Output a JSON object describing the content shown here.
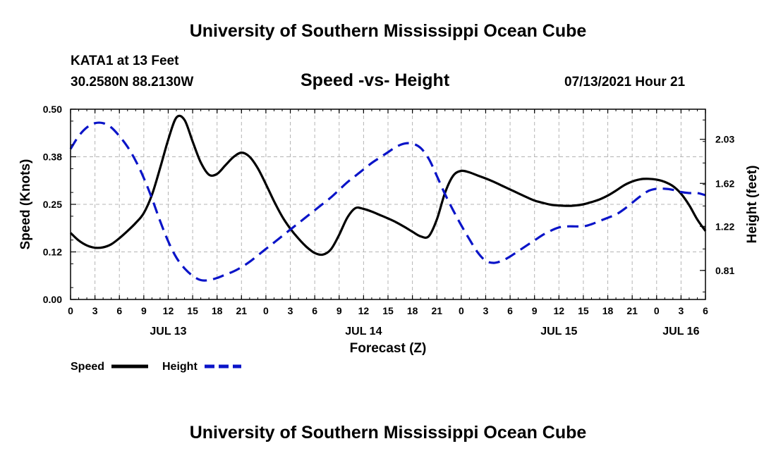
{
  "header": {
    "title_top": "University of Southern Mississippi Ocean Cube",
    "station": "KATA1 at 13 Feet",
    "coords": "30.2580N  88.2130W",
    "chart_title": "Speed -vs- Height",
    "run_time": "07/13/2021 Hour 21",
    "title_bottom": "University of Southern Mississippi Ocean Cube"
  },
  "colors": {
    "speed": "#000000",
    "height": "#0a14c8",
    "grid": "#b4b4b4"
  },
  "chart_data": {
    "type": "line",
    "title": "Speed -vs- Height",
    "xlabel": "Forecast (Z)",
    "ylabel": "Speed (Knots)",
    "y2label": "Height (feet)",
    "x_range_hours": [
      0,
      78
    ],
    "hour_ticks": [
      {
        "h": 0,
        "label": "0"
      },
      {
        "h": 3,
        "label": "3"
      },
      {
        "h": 6,
        "label": "6"
      },
      {
        "h": 9,
        "label": "9"
      },
      {
        "h": 12,
        "label": "12"
      },
      {
        "h": 15,
        "label": "15"
      },
      {
        "h": 18,
        "label": "18"
      },
      {
        "h": 21,
        "label": "21"
      },
      {
        "h": 24,
        "label": "0"
      },
      {
        "h": 27,
        "label": "3"
      },
      {
        "h": 30,
        "label": "6"
      },
      {
        "h": 33,
        "label": "9"
      },
      {
        "h": 36,
        "label": "12"
      },
      {
        "h": 39,
        "label": "15"
      },
      {
        "h": 42,
        "label": "18"
      },
      {
        "h": 45,
        "label": "21"
      },
      {
        "h": 48,
        "label": "0"
      },
      {
        "h": 51,
        "label": "3"
      },
      {
        "h": 54,
        "label": "6"
      },
      {
        "h": 57,
        "label": "9"
      },
      {
        "h": 60,
        "label": "12"
      },
      {
        "h": 63,
        "label": "15"
      },
      {
        "h": 66,
        "label": "18"
      },
      {
        "h": 69,
        "label": "21"
      },
      {
        "h": 72,
        "label": "0"
      },
      {
        "h": 75,
        "label": "3"
      },
      {
        "h": 78,
        "label": "6"
      }
    ],
    "day_labels": [
      {
        "h": 12,
        "label": "JUL 13"
      },
      {
        "h": 36,
        "label": "JUL 14"
      },
      {
        "h": 60,
        "label": "JUL 15"
      },
      {
        "h": 75,
        "label": "JUL 16"
      }
    ],
    "y_left": {
      "min": 0.0,
      "max": 0.5,
      "ticks": [
        "0.00",
        "0.12",
        "0.25",
        "0.38",
        "0.50"
      ]
    },
    "y_right": {
      "min": 0.54,
      "max": 2.31,
      "ticks": [
        "0.81",
        "1.22",
        "1.62",
        "2.03"
      ]
    },
    "series": [
      {
        "name": "Speed",
        "axis": "left",
        "style": "solid",
        "points": [
          [
            0,
            0.175
          ],
          [
            1,
            0.155
          ],
          [
            2,
            0.142
          ],
          [
            3,
            0.136
          ],
          [
            4,
            0.137
          ],
          [
            5,
            0.145
          ],
          [
            6,
            0.161
          ],
          [
            7,
            0.18
          ],
          [
            8,
            0.201
          ],
          [
            9,
            0.227
          ],
          [
            10,
            0.275
          ],
          [
            11,
            0.345
          ],
          [
            12,
            0.42
          ],
          [
            13,
            0.478
          ],
          [
            14,
            0.472
          ],
          [
            15,
            0.415
          ],
          [
            16,
            0.36
          ],
          [
            17,
            0.328
          ],
          [
            18,
            0.33
          ],
          [
            19,
            0.352
          ],
          [
            20,
            0.374
          ],
          [
            21,
            0.386
          ],
          [
            22,
            0.375
          ],
          [
            23,
            0.345
          ],
          [
            24,
            0.303
          ],
          [
            25,
            0.258
          ],
          [
            26,
            0.218
          ],
          [
            27,
            0.186
          ],
          [
            28,
            0.16
          ],
          [
            29,
            0.138
          ],
          [
            30,
            0.122
          ],
          [
            31,
            0.118
          ],
          [
            32,
            0.132
          ],
          [
            33,
            0.17
          ],
          [
            34,
            0.215
          ],
          [
            35,
            0.24
          ],
          [
            36,
            0.238
          ],
          [
            37,
            0.231
          ],
          [
            38,
            0.222
          ],
          [
            39,
            0.213
          ],
          [
            40,
            0.203
          ],
          [
            41,
            0.191
          ],
          [
            42,
            0.178
          ],
          [
            43,
            0.166
          ],
          [
            44,
            0.166
          ],
          [
            45,
            0.21
          ],
          [
            46,
            0.28
          ],
          [
            47,
            0.325
          ],
          [
            48,
            0.338
          ],
          [
            49,
            0.334
          ],
          [
            50,
            0.326
          ],
          [
            51,
            0.318
          ],
          [
            52,
            0.309
          ],
          [
            53,
            0.299
          ],
          [
            54,
            0.289
          ],
          [
            55,
            0.279
          ],
          [
            56,
            0.269
          ],
          [
            57,
            0.26
          ],
          [
            58,
            0.254
          ],
          [
            59,
            0.249
          ],
          [
            60,
            0.247
          ],
          [
            61,
            0.246
          ],
          [
            62,
            0.247
          ],
          [
            63,
            0.25
          ],
          [
            64,
            0.256
          ],
          [
            65,
            0.263
          ],
          [
            66,
            0.273
          ],
          [
            67,
            0.286
          ],
          [
            68,
            0.3
          ],
          [
            69,
            0.31
          ],
          [
            70,
            0.316
          ],
          [
            71,
            0.317
          ],
          [
            72,
            0.315
          ],
          [
            73,
            0.309
          ],
          [
            74,
            0.298
          ],
          [
            75,
            0.278
          ],
          [
            76,
            0.248
          ],
          [
            77,
            0.21
          ],
          [
            78,
            0.18
          ]
        ]
      },
      {
        "name": "Height",
        "axis": "right",
        "style": "dashed",
        "points": [
          [
            0,
            1.94
          ],
          [
            1,
            2.06
          ],
          [
            2,
            2.14
          ],
          [
            3,
            2.18
          ],
          [
            4,
            2.18
          ],
          [
            5,
            2.14
          ],
          [
            6,
            2.06
          ],
          [
            7,
            1.96
          ],
          [
            8,
            1.83
          ],
          [
            9,
            1.67
          ],
          [
            10,
            1.48
          ],
          [
            11,
            1.27
          ],
          [
            12,
            1.08
          ],
          [
            13,
            0.93
          ],
          [
            14,
            0.83
          ],
          [
            15,
            0.76
          ],
          [
            16,
            0.72
          ],
          [
            17,
            0.72
          ],
          [
            18,
            0.74
          ],
          [
            19,
            0.77
          ],
          [
            20,
            0.8
          ],
          [
            21,
            0.84
          ],
          [
            22,
            0.89
          ],
          [
            23,
            0.95
          ],
          [
            24,
            1.01
          ],
          [
            25,
            1.07
          ],
          [
            26,
            1.13
          ],
          [
            27,
            1.19
          ],
          [
            28,
            1.25
          ],
          [
            29,
            1.31
          ],
          [
            30,
            1.37
          ],
          [
            31,
            1.43
          ],
          [
            32,
            1.49
          ],
          [
            33,
            1.56
          ],
          [
            34,
            1.63
          ],
          [
            35,
            1.69
          ],
          [
            36,
            1.75
          ],
          [
            37,
            1.81
          ],
          [
            38,
            1.86
          ],
          [
            39,
            1.91
          ],
          [
            40,
            1.96
          ],
          [
            41,
            1.99
          ],
          [
            42,
            1.99
          ],
          [
            43,
            1.95
          ],
          [
            44,
            1.85
          ],
          [
            45,
            1.69
          ],
          [
            46,
            1.52
          ],
          [
            47,
            1.37
          ],
          [
            48,
            1.23
          ],
          [
            49,
            1.1
          ],
          [
            50,
            0.98
          ],
          [
            51,
            0.9
          ],
          [
            52,
            0.88
          ],
          [
            53,
            0.9
          ],
          [
            54,
            0.94
          ],
          [
            55,
            0.99
          ],
          [
            56,
            1.04
          ],
          [
            57,
            1.09
          ],
          [
            58,
            1.14
          ],
          [
            59,
            1.18
          ],
          [
            60,
            1.21
          ],
          [
            61,
            1.22
          ],
          [
            62,
            1.22
          ],
          [
            63,
            1.22
          ],
          [
            64,
            1.24
          ],
          [
            65,
            1.27
          ],
          [
            66,
            1.3
          ],
          [
            67,
            1.33
          ],
          [
            68,
            1.38
          ],
          [
            69,
            1.44
          ],
          [
            70,
            1.5
          ],
          [
            71,
            1.55
          ],
          [
            72,
            1.57
          ],
          [
            73,
            1.57
          ],
          [
            74,
            1.56
          ],
          [
            75,
            1.54
          ],
          [
            76,
            1.53
          ],
          [
            77,
            1.53
          ],
          [
            78,
            1.51
          ]
        ]
      }
    ],
    "legend": [
      {
        "label": "Speed",
        "style": "solid"
      },
      {
        "label": "Height",
        "style": "dashed"
      }
    ],
    "grid": true,
    "legend_position": "bottom-left"
  }
}
